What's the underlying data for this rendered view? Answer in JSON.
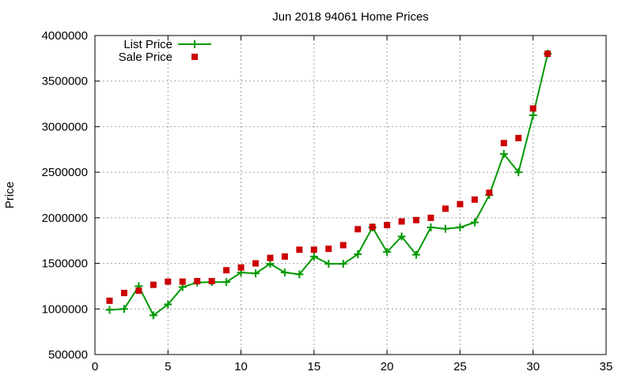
{
  "chart_data": {
    "type": "line",
    "title": "Jun 2018 94061 Home Prices",
    "xlabel": "",
    "ylabel": "Price",
    "xlim": [
      0,
      35
    ],
    "ylim": [
      500000,
      4000000
    ],
    "xticks": [
      0,
      5,
      10,
      15,
      20,
      25,
      30,
      35
    ],
    "yticks": [
      500000,
      1000000,
      1500000,
      2000000,
      2500000,
      3000000,
      3500000,
      4000000
    ],
    "grid": true,
    "legend_position": "top-left",
    "series": [
      {
        "name": "List Price",
        "style": "line+cross",
        "color": "#009900",
        "x": [
          1,
          2,
          3,
          4,
          5,
          6,
          7,
          8,
          9,
          10,
          11,
          12,
          13,
          14,
          15,
          16,
          17,
          18,
          19,
          20,
          21,
          22,
          23,
          24,
          25,
          26,
          27,
          28,
          29,
          30,
          31
        ],
        "y": [
          990000,
          1000000,
          1250000,
          930000,
          1050000,
          1240000,
          1290000,
          1295000,
          1295000,
          1400000,
          1390000,
          1495000,
          1400000,
          1380000,
          1575000,
          1495000,
          1495000,
          1600000,
          1895000,
          1625000,
          1795000,
          1595000,
          1895000,
          1880000,
          1895000,
          1950000,
          2250000,
          2700000,
          2500000,
          3125000,
          3800000
        ]
      },
      {
        "name": "Sale Price",
        "style": "square",
        "color": "#cc0000",
        "x": [
          1,
          2,
          3,
          4,
          5,
          6,
          7,
          8,
          9,
          10,
          11,
          12,
          13,
          14,
          15,
          16,
          17,
          18,
          19,
          20,
          21,
          22,
          23,
          24,
          25,
          26,
          27,
          28,
          29,
          30,
          31
        ],
        "y": [
          1090000,
          1175000,
          1200000,
          1265000,
          1300000,
          1300000,
          1305000,
          1305000,
          1425000,
          1455000,
          1500000,
          1560000,
          1575000,
          1650000,
          1650000,
          1660000,
          1700000,
          1875000,
          1900000,
          1920000,
          1960000,
          1975000,
          2000000,
          2100000,
          2150000,
          2200000,
          2275000,
          2820000,
          2875000,
          3200000,
          3800000
        ]
      }
    ]
  }
}
